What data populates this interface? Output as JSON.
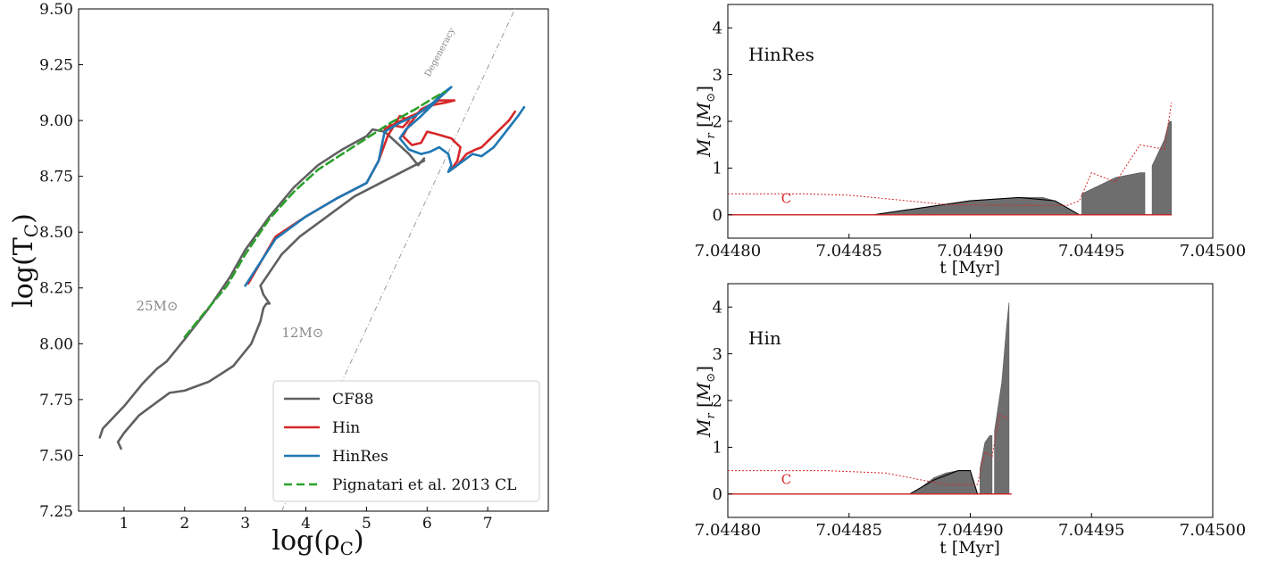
{
  "chart_data": [
    {
      "type": "line",
      "xlabel": "log(ρ_C)",
      "ylabel": "log(T_C)",
      "xlim": [
        0.25,
        8.0
      ],
      "ylim": [
        7.25,
        9.5
      ],
      "x_ticks": [
        "1",
        "2",
        "3",
        "4",
        "5",
        "6",
        "7"
      ],
      "y_ticks": [
        "7.25",
        "7.50",
        "7.75",
        "8.00",
        "8.25",
        "8.50",
        "8.75",
        "9.00",
        "9.25",
        "9.50"
      ],
      "grid": false,
      "legend_position": "bottom-right",
      "annotations": [
        {
          "text": "25M⊙",
          "x": 1.2,
          "y": 8.15
        },
        {
          "text": "12M⊙",
          "x": 3.6,
          "y": 8.03
        },
        {
          "text": "Degeneracy",
          "x": 6.25,
          "y": 9.3
        }
      ],
      "degeneracy_line": {
        "x": [
          3.6,
          7.45
        ],
        "y": [
          7.25,
          9.5
        ],
        "color": "#9a9a9a"
      },
      "series": [
        {
          "name": "CF88",
          "color": "#606060",
          "style": "solid",
          "x": [
            0.6,
            0.65,
            1.0,
            1.3,
            1.55,
            1.7,
            2.0,
            2.4,
            2.75,
            3.0,
            3.4,
            3.8,
            4.2,
            4.6,
            5.0,
            5.1,
            5.3,
            5.5,
            5.7,
            5.85,
            5.95
          ],
          "y": [
            7.58,
            7.62,
            7.72,
            7.82,
            7.89,
            7.92,
            8.02,
            8.16,
            8.3,
            8.42,
            8.57,
            8.7,
            8.8,
            8.87,
            8.93,
            8.96,
            8.95,
            8.9,
            8.85,
            8.8,
            8.83
          ]
        },
        {
          "name": "",
          "color": "#606060",
          "style": "solid",
          "x": [
            0.95,
            0.9,
            1.0,
            1.25,
            1.55,
            1.75,
            2.0,
            2.4,
            2.8,
            3.1,
            3.25,
            3.3,
            3.35,
            3.4,
            3.3,
            3.25,
            3.35,
            3.6,
            3.9,
            4.3,
            4.8,
            5.3,
            5.8,
            5.95
          ],
          "y": [
            7.53,
            7.56,
            7.6,
            7.68,
            7.74,
            7.78,
            7.79,
            7.83,
            7.9,
            8.0,
            8.1,
            8.16,
            8.18,
            8.18,
            8.22,
            8.26,
            8.3,
            8.4,
            8.48,
            8.56,
            8.66,
            8.73,
            8.8,
            8.82
          ]
        },
        {
          "name": "Hin",
          "color": "#d62728",
          "style": "solid",
          "x": [
            3.05,
            3.5,
            4.0,
            4.5,
            5.0,
            5.2,
            5.35,
            5.55,
            5.7,
            5.6,
            5.4,
            5.3,
            5.5,
            5.9,
            6.1,
            6.3,
            6.45,
            6.2,
            5.9,
            5.7,
            5.6,
            5.75,
            5.9,
            6.0,
            6.15,
            6.4,
            6.55,
            6.5,
            6.4,
            6.5,
            6.65,
            6.8,
            6.9,
            7.05,
            7.2,
            7.35,
            7.45
          ],
          "y": [
            8.27,
            8.48,
            8.57,
            8.65,
            8.72,
            8.82,
            8.93,
            9.02,
            9.0,
            8.97,
            8.98,
            8.96,
            8.99,
            9.04,
            9.07,
            9.08,
            9.09,
            9.09,
            9.05,
            8.98,
            8.93,
            8.89,
            8.9,
            8.95,
            8.94,
            8.92,
            8.88,
            8.82,
            8.78,
            8.8,
            8.85,
            8.87,
            8.88,
            8.92,
            8.96,
            9.0,
            9.04
          ]
        },
        {
          "name": "HinRes",
          "color": "#1f77b4",
          "style": "solid",
          "x": [
            3.0,
            3.5,
            4.0,
            4.5,
            5.0,
            5.2,
            5.3,
            5.55,
            5.8,
            5.95,
            6.1,
            6.25,
            6.4,
            6.2,
            5.9,
            5.65,
            5.55,
            5.7,
            5.9,
            6.05,
            6.2,
            6.35,
            6.4,
            6.35,
            6.45,
            6.6,
            6.75,
            6.9,
            7.1,
            7.3,
            7.5,
            7.6
          ],
          "y": [
            8.26,
            8.47,
            8.57,
            8.65,
            8.72,
            8.82,
            8.95,
            8.99,
            9.02,
            9.05,
            9.08,
            9.12,
            9.15,
            9.1,
            9.02,
            8.96,
            8.92,
            8.87,
            8.85,
            8.86,
            8.88,
            8.85,
            8.8,
            8.77,
            8.79,
            8.82,
            8.85,
            8.84,
            8.88,
            8.95,
            9.02,
            9.06
          ]
        },
        {
          "name": "Pignatari et al. 2013 CL",
          "color": "#2ca02c",
          "style": "dashed",
          "x": [
            2.0,
            2.3,
            2.7,
            3.0,
            3.4,
            3.8,
            4.2,
            4.6,
            5.0,
            5.4,
            5.8,
            6.1,
            6.3
          ],
          "y": [
            8.03,
            8.13,
            8.26,
            8.4,
            8.56,
            8.68,
            8.78,
            8.85,
            8.92,
            8.99,
            9.05,
            9.1,
            9.13
          ]
        }
      ]
    },
    {
      "type": "area",
      "title": "HinRes",
      "xlabel": "t [Myr]",
      "ylabel": "M_r [M⊙]",
      "xlim": [
        7.0448,
        7.045
      ],
      "ylim": [
        -0.5,
        4.5
      ],
      "x_ticks": [
        "7.04480",
        "7.04485",
        "7.04490",
        "7.04495",
        "7.04500"
      ],
      "y_ticks": [
        "0",
        "1",
        "2",
        "3",
        "4"
      ],
      "annotations": [
        {
          "text": "C",
          "x": 7.044822,
          "y": 0.25,
          "color": "#d62728"
        }
      ],
      "convective_regions": [
        {
          "x": [
            7.04486,
            7.04488,
            7.0449,
            7.04492,
            7.04493,
            7.044935,
            7.044945
          ],
          "top": [
            0.0,
            0.15,
            0.3,
            0.37,
            0.37,
            0.3,
            0.0
          ]
        },
        {
          "x": [
            7.044946,
            7.04496,
            7.04497,
            7.044972
          ],
          "top": [
            0.45,
            0.8,
            0.9,
            0.9
          ]
        },
        {
          "x": [
            7.044975,
            7.04498,
            7.044982,
            7.044983
          ],
          "top": [
            1.05,
            1.6,
            2.0,
            2.0
          ]
        }
      ],
      "black_line": {
        "x": [
          7.0448,
          7.04486,
          7.04488,
          7.0449,
          7.04492,
          7.044935,
          7.044945,
          7.044983
        ],
        "y": [
          0.0,
          0.0,
          0.15,
          0.3,
          0.37,
          0.3,
          0.0,
          0.0
        ]
      },
      "carbon_abundance": {
        "x": [
          7.0448,
          7.04483,
          7.04485,
          7.04487,
          7.04489,
          7.04492,
          7.04494,
          7.044945,
          7.04495,
          7.04496,
          7.04497,
          7.04498,
          7.044983
        ],
        "y": [
          0.45,
          0.45,
          0.42,
          0.32,
          0.22,
          0.2,
          0.2,
          0.3,
          0.9,
          0.7,
          1.5,
          1.4,
          2.4
        ]
      }
    },
    {
      "type": "area",
      "title": "Hin",
      "xlabel": "t [Myr]",
      "ylabel": "M_r [M⊙]",
      "xlim": [
        7.0448,
        7.045
      ],
      "ylim": [
        -0.5,
        4.5
      ],
      "x_ticks": [
        "7.04480",
        "7.04485",
        "7.04490",
        "7.04495",
        "7.04500"
      ],
      "y_ticks": [
        "0",
        "1",
        "2",
        "3",
        "4"
      ],
      "annotations": [
        {
          "text": "C",
          "x": 7.044822,
          "y": 0.22,
          "color": "#d62728"
        }
      ],
      "convective_regions": [
        {
          "x": [
            7.044875,
            7.04488,
            7.044885,
            7.04489,
            7.044895,
            7.0449,
            7.044903
          ],
          "top": [
            0.0,
            0.15,
            0.35,
            0.45,
            0.5,
            0.5,
            0.0
          ]
        },
        {
          "x": [
            7.044904,
            7.044906,
            7.044908,
            7.044909
          ],
          "top": [
            0.55,
            1.1,
            1.25,
            1.25
          ]
        },
        {
          "x": [
            7.04491,
            7.044913,
            7.044915,
            7.044916
          ],
          "top": [
            1.35,
            2.4,
            3.6,
            4.1
          ]
        }
      ],
      "black_line": {
        "x": [
          7.0448,
          7.044875,
          7.044885,
          7.044895,
          7.0449,
          7.044903,
          7.044917
        ],
        "y": [
          0.0,
          0.0,
          0.3,
          0.5,
          0.5,
          0.0,
          0.0
        ]
      },
      "carbon_abundance": {
        "x": [
          7.0448,
          7.04484,
          7.044865,
          7.04488,
          7.04489,
          7.0449,
          7.044903,
          7.044906,
          7.044909,
          7.044912,
          7.044916
        ],
        "y": [
          0.5,
          0.5,
          0.45,
          0.3,
          0.2,
          0.2,
          0.2,
          0.9,
          0.8,
          1.7,
          1.6
        ]
      }
    }
  ]
}
